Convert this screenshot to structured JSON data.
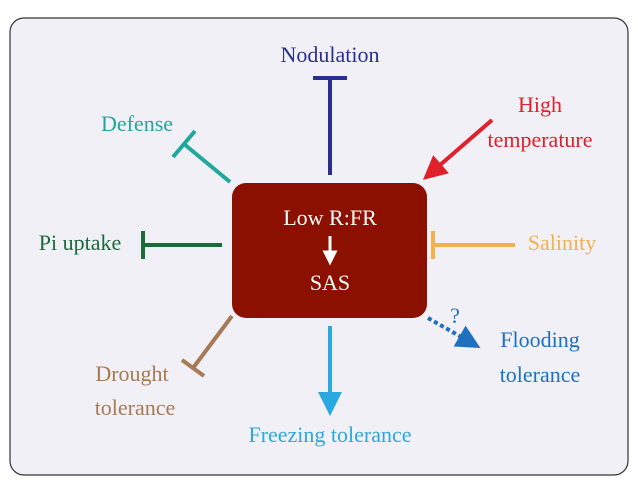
{
  "center": {
    "lines": [
      "Low R:FR",
      "SAS"
    ]
  },
  "nodes": [
    {
      "lines": [
        "Nodulation"
      ]
    },
    {
      "lines": [
        "High",
        "temperature"
      ]
    },
    {
      "lines": [
        "Defense"
      ]
    },
    {
      "lines": [
        "Pi uptake"
      ]
    },
    {
      "lines": [
        "Salinity"
      ]
    },
    {
      "lines": [
        "Drought",
        "tolerance"
      ]
    },
    {
      "lines": [
        "Freezing tolerance"
      ]
    },
    {
      "lines": [
        "Flooding",
        "tolerance"
      ]
    }
  ],
  "question": "?"
}
